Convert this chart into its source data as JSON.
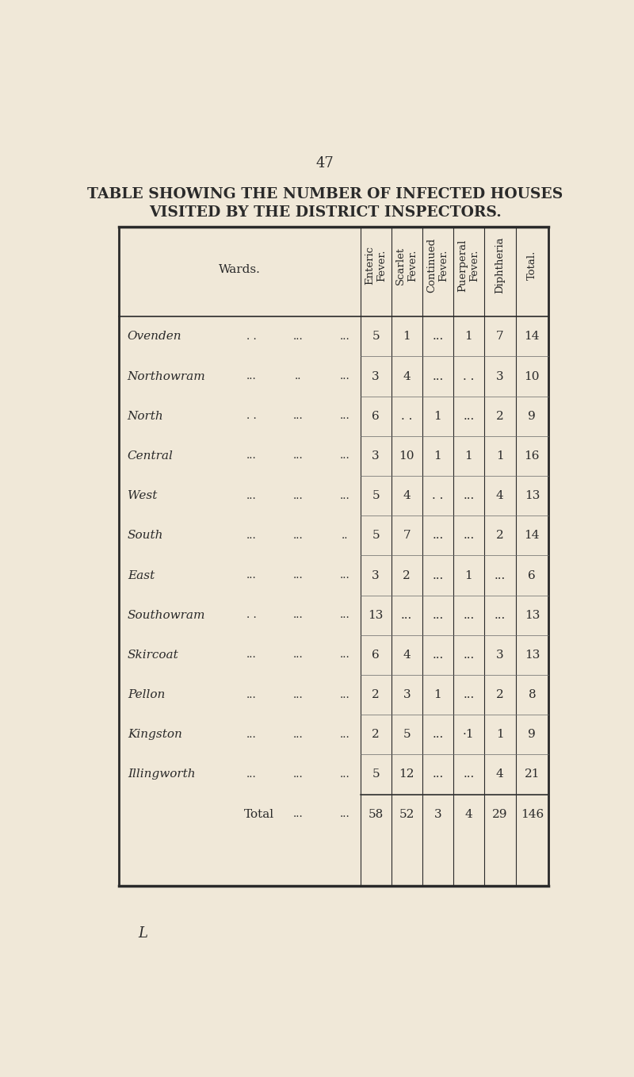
{
  "page_number": "47",
  "title_line1": "TABLE SHOWING THE NUMBER OF INFECTED HOUSES",
  "title_line2": "VISITED BY THE DISTRICT INSPECTORS.",
  "footer_letter": "L",
  "bg_color": "#f0e8d8",
  "text_color": "#2a2a2a",
  "col_headers": [
    "Enteric\nFever.",
    "Scarlet\nFever.",
    "Continued\nFever.",
    "Puerperal\nFever.",
    "Diphtheria",
    "Total."
  ],
  "ward_col_header": "Wards.",
  "rows": [
    {
      "ward": "Ovenden",
      "dots": [
        ". .",
        "...",
        "..."
      ],
      "enteric": "5",
      "scarlet": "1",
      "continued": "...",
      "puerperal": "1",
      "diphtheria": "7",
      "total": "14"
    },
    {
      "ward": "Northowram",
      "dots": [
        "...",
        "..",
        "..."
      ],
      "enteric": "3",
      "scarlet": "4",
      "continued": "...",
      "puerperal": ". .",
      "diphtheria": "3",
      "total": "10"
    },
    {
      "ward": "North",
      "dots": [
        ". .",
        "...",
        "..."
      ],
      "enteric": "6",
      "scarlet": ". .",
      "continued": "1",
      "puerperal": "...",
      "diphtheria": "2",
      "total": "9"
    },
    {
      "ward": "Central",
      "dots": [
        "...",
        "...",
        "..."
      ],
      "enteric": "3",
      "scarlet": "10",
      "continued": "1",
      "puerperal": "1",
      "diphtheria": "1",
      "total": "16"
    },
    {
      "ward": "West",
      "dots": [
        "...",
        "...",
        "..."
      ],
      "enteric": "5",
      "scarlet": "4",
      "continued": ". .",
      "puerperal": "...",
      "diphtheria": "4",
      "total": "13"
    },
    {
      "ward": "South",
      "dots": [
        "...",
        "...",
        ".."
      ],
      "enteric": "5",
      "scarlet": "7",
      "continued": "...",
      "puerperal": "...",
      "diphtheria": "2",
      "total": "14"
    },
    {
      "ward": "East",
      "dots": [
        "...",
        "...",
        "..."
      ],
      "enteric": "3",
      "scarlet": "2",
      "continued": "...",
      "puerperal": "1",
      "diphtheria": "...",
      "total": "6"
    },
    {
      "ward": "Southowram",
      "dots": [
        ". .",
        "...",
        "..."
      ],
      "enteric": "13",
      "scarlet": "...",
      "continued": "...",
      "puerperal": "...",
      "diphtheria": "...",
      "total": "13"
    },
    {
      "ward": "Skircoat",
      "dots": [
        "...",
        "...",
        "..."
      ],
      "enteric": "6",
      "scarlet": "4",
      "continued": "...",
      "puerperal": "...",
      "diphtheria": "3",
      "total": "13"
    },
    {
      "ward": "Pellon",
      "dots": [
        "...",
        "...",
        "..."
      ],
      "enteric": "2",
      "scarlet": "3",
      "continued": "1",
      "puerperal": "...",
      "diphtheria": "2",
      "total": "8"
    },
    {
      "ward": "Kingston",
      "dots": [
        "...",
        "...",
        "..."
      ],
      "enteric": "2",
      "scarlet": "5",
      "continued": "...",
      "puerperal": "·1",
      "diphtheria": "1",
      "total": "9"
    },
    {
      "ward": "Illingworth",
      "dots": [
        "...",
        "...",
        "..."
      ],
      "enteric": "5",
      "scarlet": "12",
      "continued": "...",
      "puerperal": "...",
      "diphtheria": "4",
      "total": "21"
    }
  ],
  "total_row": {
    "label": "Total",
    "dots1": "...",
    "dots2": "...",
    "enteric": "58",
    "scarlet": "52",
    "continued": "3",
    "puerperal": "4",
    "diphtheria": "29",
    "total": "146"
  }
}
